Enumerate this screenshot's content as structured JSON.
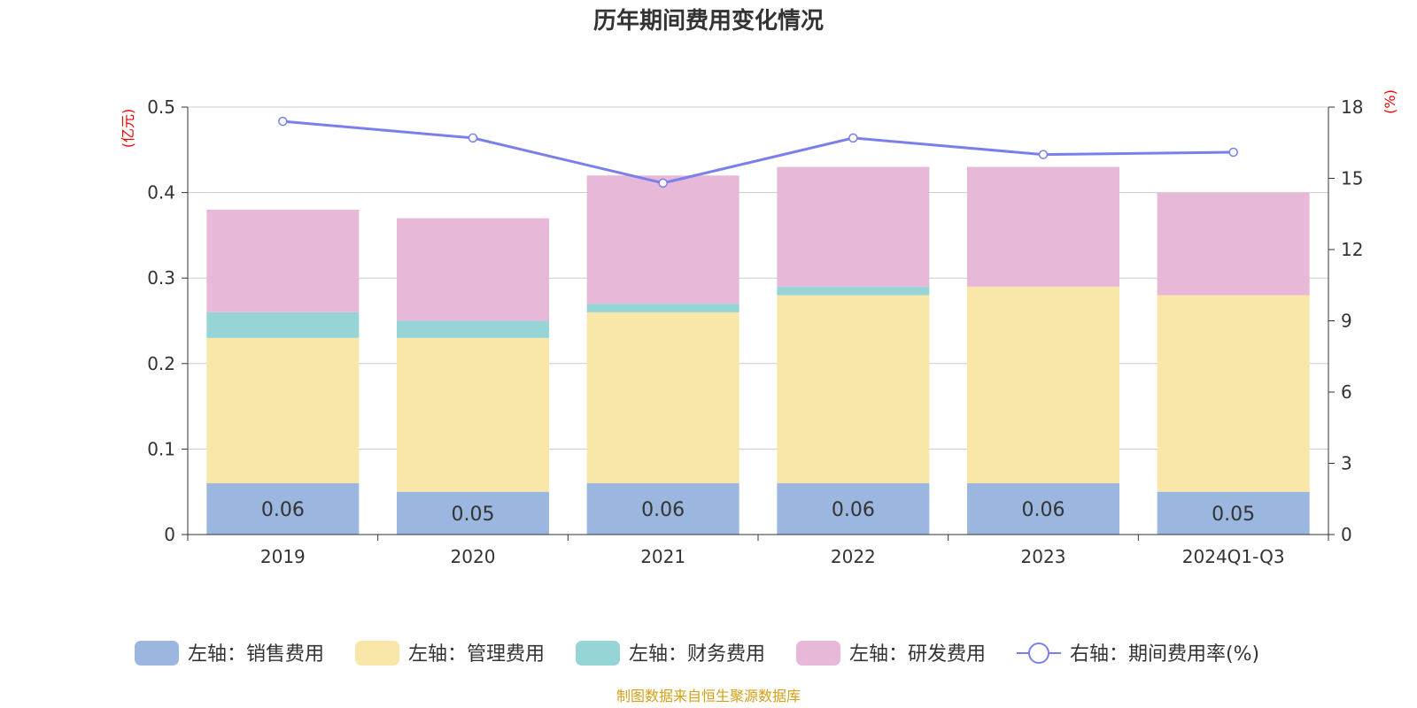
{
  "chart_data": {
    "type": "bar",
    "title": "历年期间费用变化情况",
    "categories": [
      "2019",
      "2020",
      "2021",
      "2022",
      "2023",
      "2024Q1-Q3"
    ],
    "y_left": {
      "unit": "(亿元)",
      "ylim": [
        0,
        0.5
      ],
      "ticks": [
        "0",
        "0.1",
        "0.2",
        "0.3",
        "0.4",
        "0.5"
      ]
    },
    "y_right": {
      "unit": "(%)",
      "ylim": [
        0,
        18
      ],
      "ticks": [
        "0",
        "3",
        "6",
        "9",
        "12",
        "15",
        "18"
      ]
    },
    "stacked": true,
    "grid": true,
    "legend_position": "bottom",
    "series": [
      {
        "name": "左轴：销售费用",
        "axis": "left",
        "type": "bar",
        "color": "#9bb7e0",
        "values": [
          0.06,
          0.05,
          0.06,
          0.06,
          0.06,
          0.05
        ],
        "labels": [
          "0.06",
          "0.05",
          "0.06",
          "0.06",
          "0.06",
          "0.05"
        ]
      },
      {
        "name": "左轴：管理费用",
        "axis": "left",
        "type": "bar",
        "color": "#f8e7a8",
        "values": [
          0.17,
          0.18,
          0.2,
          0.22,
          0.23,
          0.23
        ]
      },
      {
        "name": "左轴：财务费用",
        "axis": "left",
        "type": "bar",
        "color": "#96d4d6",
        "values": [
          0.03,
          0.02,
          0.01,
          0.01,
          0.0,
          0.0
        ]
      },
      {
        "name": "左轴：研发费用",
        "axis": "left",
        "type": "bar",
        "color": "#e8b8d9",
        "values": [
          0.12,
          0.12,
          0.15,
          0.14,
          0.14,
          0.12
        ]
      },
      {
        "name": "右轴：期间费用率(%)",
        "axis": "right",
        "type": "line",
        "color": "#7b7fec",
        "values": [
          17.4,
          16.7,
          14.8,
          16.7,
          16.0,
          16.1
        ]
      }
    ],
    "source": "制图数据来自恒生聚源数据库"
  }
}
